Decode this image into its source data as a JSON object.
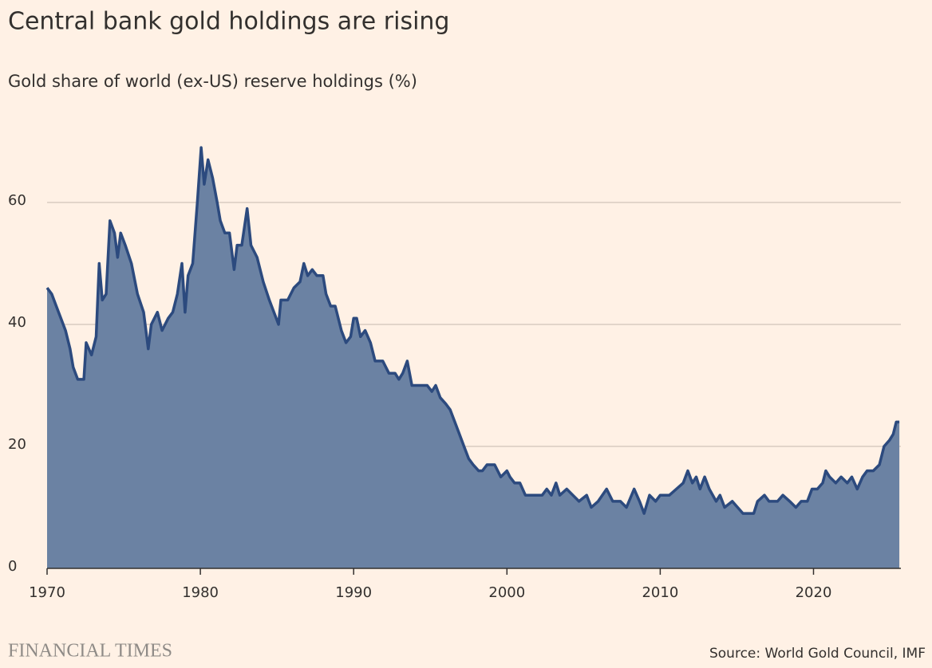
{
  "chart_data": {
    "type": "area",
    "title": "Central bank gold holdings are rising",
    "subtitle": "Gold share of world (ex-US) reserve holdings (%)",
    "source": "Source: World Gold Council, IMF",
    "brand": "FINANCIAL TIMES",
    "x": [
      1970,
      1970.3,
      1970.6,
      1970.9,
      1971.2,
      1971.5,
      1971.7,
      1972.0,
      1972.4,
      1972.55,
      1972.9,
      1973.2,
      1973.4,
      1973.6,
      1973.85,
      1974.1,
      1974.4,
      1974.6,
      1974.8,
      1975.1,
      1975.5,
      1975.9,
      1976.3,
      1976.6,
      1976.8,
      1977.2,
      1977.5,
      1977.9,
      1978.2,
      1978.5,
      1978.8,
      1979.0,
      1979.2,
      1979.5,
      1979.8,
      1980.05,
      1980.25,
      1980.5,
      1980.8,
      1981.1,
      1981.3,
      1981.6,
      1981.9,
      1982.2,
      1982.4,
      1982.7,
      1983.05,
      1983.3,
      1983.7,
      1984.1,
      1984.5,
      1985.1,
      1985.25,
      1985.7,
      1986.1,
      1986.5,
      1986.75,
      1987.0,
      1987.3,
      1987.6,
      1988.0,
      1988.2,
      1988.5,
      1988.8,
      1989.2,
      1989.5,
      1989.8,
      1990.0,
      1990.2,
      1990.45,
      1990.75,
      1991.1,
      1991.4,
      1991.9,
      1992.3,
      1992.7,
      1992.95,
      1993.2,
      1993.5,
      1993.8,
      1994.2,
      1994.8,
      1995.1,
      1995.35,
      1995.65,
      1996.0,
      1996.3,
      1996.6,
      1996.9,
      1997.2,
      1997.5,
      1997.8,
      1998.15,
      1998.4,
      1998.7,
      1999.2,
      1999.6,
      2000.0,
      2000.2,
      2000.5,
      2000.85,
      2001.2,
      2002.3,
      2002.6,
      2002.9,
      2003.2,
      2003.45,
      2003.9,
      2004.3,
      2004.7,
      2005.2,
      2005.5,
      2005.95,
      2006.5,
      2006.9,
      2007.4,
      2007.8,
      2008.3,
      2008.65,
      2008.95,
      2009.3,
      2009.7,
      2010.0,
      2010.6,
      2011.05,
      2011.5,
      2011.8,
      2012.1,
      2012.35,
      2012.6,
      2012.9,
      2013.2,
      2013.65,
      2013.9,
      2014.2,
      2014.7,
      2015.05,
      2015.4,
      2016.1,
      2016.35,
      2016.8,
      2017.1,
      2017.65,
      2018.0,
      2018.45,
      2018.85,
      2019.2,
      2019.6,
      2019.9,
      2020.25,
      2020.6,
      2020.8,
      2021.05,
      2021.45,
      2021.8,
      2022.2,
      2022.5,
      2022.85,
      2023.2,
      2023.5,
      2023.9,
      2024.3,
      2024.6,
      2024.95,
      2025.2,
      2025.4,
      2025.6
    ],
    "values": [
      46,
      45,
      43,
      41,
      39,
      36,
      33,
      31,
      31,
      37,
      35,
      38,
      50,
      44,
      45,
      57,
      55,
      51,
      55,
      53,
      50,
      45,
      42,
      36,
      40,
      42,
      39,
      41,
      42,
      45,
      50,
      42,
      48,
      50,
      60,
      69,
      63,
      67,
      64,
      60,
      57,
      55,
      55,
      49,
      53,
      53,
      59,
      53,
      51,
      47,
      44,
      40,
      44,
      44,
      46,
      47,
      50,
      48,
      49,
      48,
      48,
      45,
      43,
      43,
      39,
      37,
      38,
      41,
      41,
      38,
      39,
      37,
      34,
      34,
      32,
      32,
      31,
      32,
      34,
      30,
      30,
      30,
      29,
      30,
      28,
      27,
      26,
      24,
      22,
      20,
      18,
      17,
      16,
      16,
      17,
      17,
      15,
      16,
      15,
      14,
      14,
      12,
      12,
      13,
      12,
      14,
      12,
      13,
      12,
      11,
      12,
      10,
      11,
      13,
      11,
      11,
      10,
      13,
      11,
      9,
      12,
      11,
      12,
      12,
      13,
      14,
      16,
      14,
      15,
      13,
      15,
      13,
      11,
      12,
      10,
      11,
      10,
      9,
      9,
      11,
      12,
      11,
      11,
      12,
      11,
      10,
      11,
      11,
      13,
      13,
      14,
      16,
      15,
      14,
      15,
      14,
      15,
      13,
      15,
      16,
      16,
      17,
      20,
      21,
      22,
      24,
      24
    ],
    "color": "#2c4a7e",
    "area_color": "#6b82a3",
    "xlim": [
      1970,
      2025.7
    ],
    "ylim": [
      0,
      70
    ],
    "xticks": [
      1970,
      1980,
      1990,
      2000,
      2010,
      2020
    ],
    "yticks": [
      0,
      20,
      40,
      60
    ],
    "grid": true
  }
}
